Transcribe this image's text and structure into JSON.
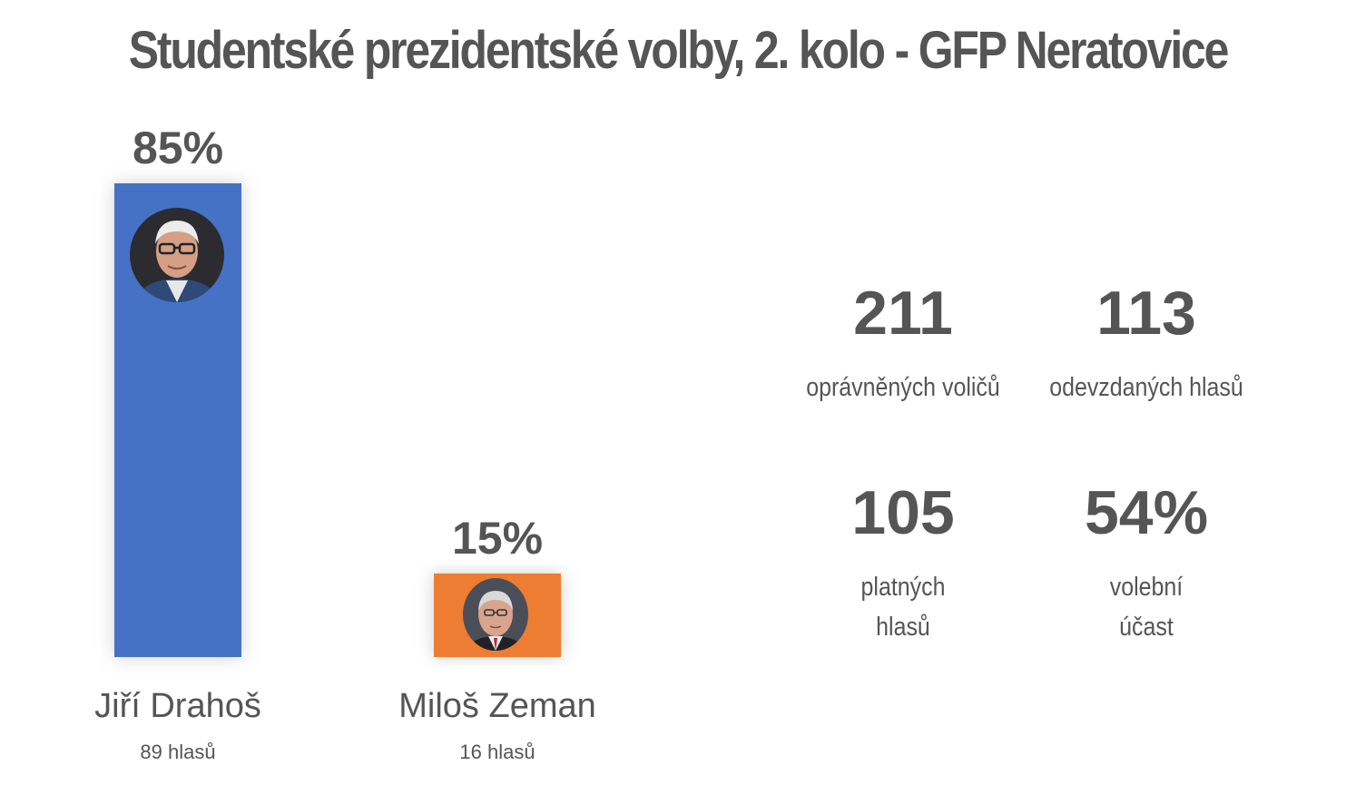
{
  "title": "Studentské prezidentské volby, 2. kolo - GFP Neratovice",
  "chart_data": {
    "type": "bar",
    "categories": [
      "Jiří Drahoš",
      "Miloš Zeman"
    ],
    "values": [
      85,
      15
    ],
    "value_labels": [
      "85%",
      "15%"
    ],
    "votes": [
      89,
      16
    ],
    "vote_labels": [
      "89 hlasů",
      "16 hlasů"
    ],
    "colors": [
      "#4472c4",
      "#ed7d31"
    ],
    "ylim": [
      0,
      85
    ],
    "grid": false,
    "legend": "none"
  },
  "stats": [
    {
      "value": "211",
      "label_lines": [
        "oprávněných voličů"
      ]
    },
    {
      "value": "113",
      "label_lines": [
        "odevzdaných hlasů"
      ]
    },
    {
      "value": "105",
      "label_lines": [
        "platných",
        "hlasů"
      ]
    },
    {
      "value": "54%",
      "label_lines": [
        "volební",
        "účast"
      ]
    }
  ]
}
